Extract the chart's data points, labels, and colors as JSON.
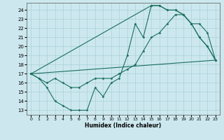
{
  "xlabel": "Humidex (Indice chaleur)",
  "xlim": [
    -0.5,
    23.5
  ],
  "ylim": [
    12.5,
    24.8
  ],
  "yticks": [
    13,
    14,
    15,
    16,
    17,
    18,
    19,
    20,
    21,
    22,
    23,
    24
  ],
  "xticks": [
    0,
    1,
    2,
    3,
    4,
    5,
    6,
    7,
    8,
    9,
    10,
    11,
    12,
    13,
    14,
    15,
    16,
    17,
    18,
    19,
    20,
    21,
    22,
    23
  ],
  "bg_color": "#cce8ee",
  "grid_color": "#aad0da",
  "line_color": "#1a6e5e",
  "line1": {
    "x": [
      0,
      1,
      2,
      3,
      4,
      5,
      6,
      7,
      8,
      9,
      10,
      11,
      12,
      13,
      14,
      15,
      16,
      17,
      18,
      19,
      20,
      21,
      22,
      23
    ],
    "y": [
      17.0,
      16.5,
      15.5,
      14.0,
      13.5,
      13.0,
      13.0,
      13.0,
      15.5,
      14.5,
      16.0,
      16.5,
      19.0,
      22.5,
      21.0,
      24.5,
      24.5,
      24.0,
      24.0,
      23.5,
      22.5,
      21.0,
      20.0,
      18.5
    ]
  },
  "line2": {
    "x": [
      0,
      1,
      2,
      3,
      4,
      5,
      6,
      7,
      8,
      9,
      10,
      11,
      12,
      13,
      14,
      15,
      16,
      17,
      18,
      19,
      20,
      21,
      22,
      23
    ],
    "y": [
      17.0,
      16.5,
      16.0,
      16.5,
      16.0,
      15.5,
      15.5,
      16.0,
      16.5,
      16.5,
      16.5,
      17.0,
      17.5,
      18.0,
      19.5,
      21.0,
      21.5,
      22.5,
      23.5,
      23.5,
      22.5,
      22.5,
      21.5,
      18.5
    ]
  },
  "line3": {
    "x": [
      0,
      23
    ],
    "y": [
      17.0,
      18.5
    ]
  },
  "line4": {
    "x": [
      0,
      15,
      16,
      17,
      18,
      19,
      20,
      21,
      22,
      23
    ],
    "y": [
      17.0,
      24.5,
      24.5,
      24.0,
      24.0,
      23.5,
      22.5,
      21.0,
      20.0,
      18.5
    ]
  }
}
